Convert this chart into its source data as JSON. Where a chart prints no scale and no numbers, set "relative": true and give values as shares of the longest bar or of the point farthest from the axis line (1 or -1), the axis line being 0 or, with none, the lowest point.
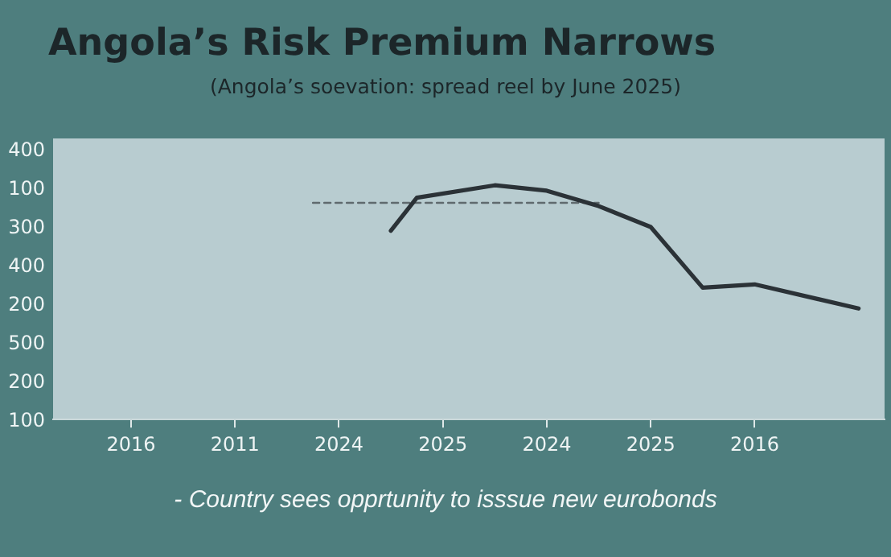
{
  "chart_data": {
    "type": "line",
    "title": "Angola’s Risk Premium Narrows",
    "subtitle": "(Angola’s soevation: spread reel by June 2025)",
    "annotations": [
      "400",
      "100",
      "300",
      "400",
      "200",
      "500",
      "200",
      "100",
      "- Country sees opprtunity to isssue new eurobonds"
    ],
    "relative": true,
    "categories": [
      null,
      null,
      null,
      "2016",
      null,
      null,
      null,
      "2011",
      null,
      null,
      null,
      "2024",
      null,
      null,
      null,
      "2025",
      null,
      null,
      null,
      "2024",
      null,
      null,
      null,
      "2025",
      null,
      null,
      null,
      "2016",
      null,
      null,
      null,
      null,
      null
    ],
    "marker": "none",
    "series": [
      {
        "color": "#2b3237",
        "values": [
          null,
          null,
          null,
          null,
          null,
          null,
          null,
          null,
          null,
          null,
          null,
          null,
          null,
          0.806,
          0.947,
          null,
          null,
          1.0,
          null,
          0.977,
          null,
          0.911,
          null,
          0.822,
          null,
          0.563,
          null,
          0.577,
          null,
          null,
          null,
          0.474,
          null
        ]
      },
      {
        "color": "#5f6a6e",
        "line_style": "dashed",
        "values": [
          null,
          null,
          null,
          null,
          null,
          null,
          null,
          null,
          null,
          null,
          0.925,
          null,
          null,
          null,
          null,
          null,
          null,
          null,
          null,
          null,
          null,
          0.925,
          null,
          null,
          null,
          null,
          null,
          null,
          null,
          null,
          null,
          null,
          null
        ]
      }
    ]
  }
}
